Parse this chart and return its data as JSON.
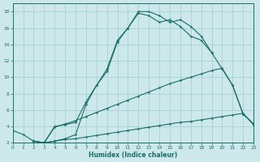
{
  "xlabel": "Humidex (Indice chaleur)",
  "bg_color": "#cce8ea",
  "grid_color": "#9ecdd2",
  "line_color": "#1a6e6a",
  "xlim": [
    0,
    23
  ],
  "ylim": [
    2,
    19
  ],
  "curve1_x": [
    0,
    1,
    2,
    3,
    4,
    5,
    6,
    7,
    8,
    9,
    10,
    11,
    12,
    13,
    14,
    15,
    16,
    17,
    18,
    19
  ],
  "curve1_y": [
    3.5,
    3.0,
    2.2,
    2.0,
    2.2,
    2.5,
    3.0,
    6.7,
    9.0,
    11.0,
    14.5,
    16.0,
    18.0,
    18.0,
    17.5,
    16.7,
    17.0,
    16.2,
    15.0,
    13.0
  ],
  "curve2_x": [
    2,
    3,
    4,
    5,
    6,
    7,
    8,
    9,
    10,
    11,
    12,
    13,
    14,
    15,
    16,
    17,
    18,
    19,
    20,
    21,
    22,
    23
  ],
  "curve2_y": [
    2.2,
    2.0,
    4.0,
    4.2,
    4.5,
    7.0,
    9.0,
    10.7,
    14.3,
    16.0,
    17.8,
    17.5,
    16.7,
    17.0,
    16.2,
    15.0,
    14.5,
    13.0,
    11.0,
    9.0,
    5.5,
    4.3
  ],
  "curve3_x": [
    2,
    3,
    4,
    5,
    6,
    7,
    8,
    9,
    10,
    11,
    12,
    13,
    14,
    15,
    16,
    17,
    18,
    19,
    20,
    21,
    22,
    23
  ],
  "curve3_y": [
    2.2,
    2.0,
    3.9,
    4.3,
    4.7,
    5.2,
    5.7,
    6.2,
    6.7,
    7.2,
    7.7,
    8.2,
    8.7,
    9.2,
    9.6,
    10.0,
    10.4,
    10.8,
    11.1,
    9.0,
    5.5,
    4.3
  ],
  "curve4_x": [
    2,
    3,
    4,
    5,
    6,
    7,
    8,
    9,
    10,
    11,
    12,
    13,
    14,
    15,
    16,
    17,
    18,
    19,
    20,
    21,
    22,
    23
  ],
  "curve4_y": [
    2.2,
    2.0,
    2.2,
    2.4,
    2.5,
    2.7,
    2.9,
    3.1,
    3.3,
    3.5,
    3.7,
    3.9,
    4.1,
    4.3,
    4.5,
    4.6,
    4.8,
    5.0,
    5.2,
    5.4,
    5.6,
    4.2
  ]
}
